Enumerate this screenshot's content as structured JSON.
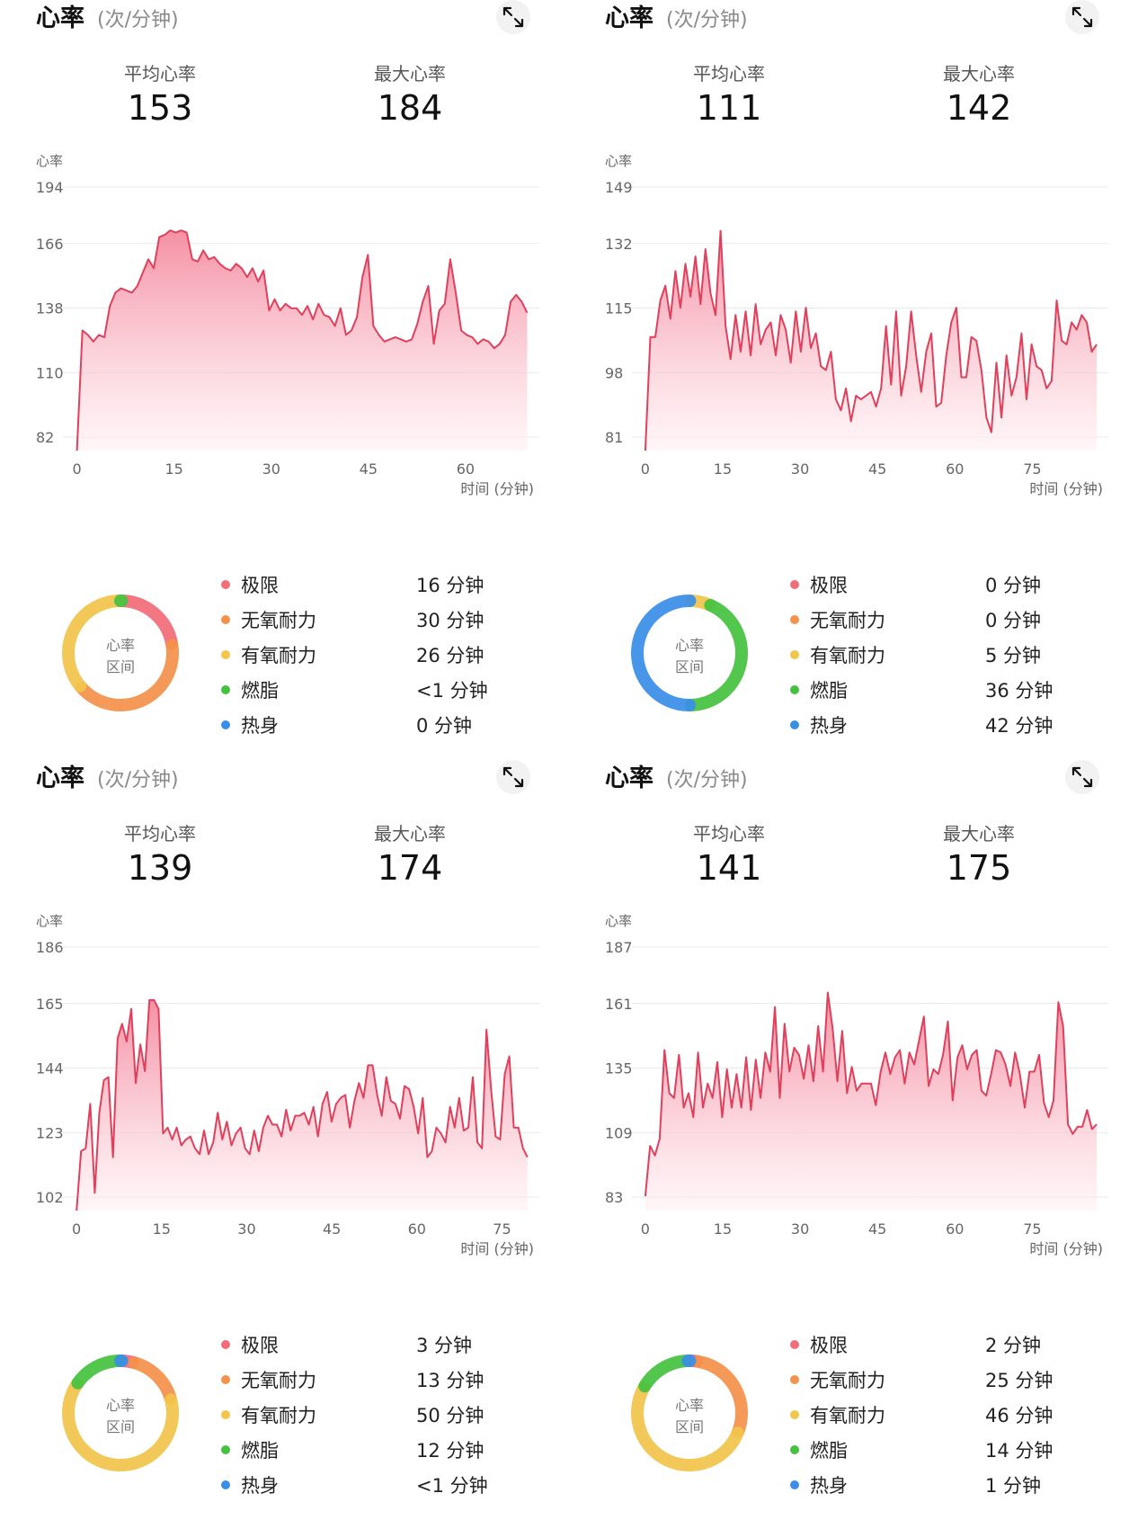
{
  "common": {
    "title": "心率",
    "unit": "(次/分钟)",
    "avg_label": "平均心率",
    "max_label": "最大心率",
    "y_axis_label": "心率",
    "x_axis_label": "时间 (分钟)",
    "donut_center_line1": "心率",
    "donut_center_line2": "区间",
    "expand_icon": "expand-arrows-icon",
    "line_color": "#e0405c",
    "fill_top": "#f48a9f",
    "fill_bottom": "#fff0f3"
  },
  "zones": [
    {
      "name": "极限",
      "color": "#f26d78"
    },
    {
      "name": "无氧耐力",
      "color": "#f4914a"
    },
    {
      "name": "有氧耐力",
      "color": "#f2c64b"
    },
    {
      "name": "燃脂",
      "color": "#44c23f"
    },
    {
      "name": "热身",
      "color": "#3a8ee8"
    }
  ],
  "panels": [
    {
      "avg": "153",
      "max": "184",
      "zone_values": [
        "16 分钟",
        "30 分钟",
        "26 分钟",
        "<1 分钟",
        "0 分钟"
      ],
      "donut_minutes": [
        16,
        30,
        26,
        0.5,
        0
      ],
      "chart_data": {
        "type": "area",
        "ylim": [
          82,
          194
        ],
        "yticks": [
          "194",
          "166",
          "138",
          "110",
          "82"
        ],
        "xlim": [
          -0.5,
          70
        ],
        "xticks": [
          "0",
          "15",
          "30",
          "45",
          "60"
        ],
        "xtick_values": [
          0,
          15,
          30,
          45,
          60
        ],
        "values": [
          82,
          136,
          134,
          131,
          134,
          133,
          147,
          153,
          155,
          154,
          153,
          156,
          162,
          168,
          164,
          178,
          179,
          181,
          180,
          181,
          180,
          168,
          167,
          172,
          168,
          169,
          166,
          164,
          163,
          166,
          164,
          160,
          164,
          158,
          163,
          145,
          150,
          145,
          148,
          146,
          146,
          143,
          147,
          141,
          148,
          143,
          142,
          138,
          146,
          134,
          136,
          142,
          160,
          170,
          138,
          134,
          131,
          132,
          133,
          132,
          131,
          132,
          139,
          149,
          156,
          130,
          145,
          148,
          168,
          153,
          136,
          134,
          133,
          130,
          132,
          131,
          128,
          130,
          134,
          149,
          152,
          149,
          144
        ]
      }
    },
    {
      "avg": "111",
      "max": "142",
      "zone_values": [
        "0 分钟",
        "0 分钟",
        "5 分钟",
        "36 分钟",
        "42 分钟"
      ],
      "donut_minutes": [
        0,
        0,
        5,
        36,
        42
      ],
      "chart_data": {
        "type": "area",
        "ylim": [
          81,
          149
        ],
        "yticks": [
          "149",
          "132",
          "115",
          "98",
          "81"
        ],
        "xlim": [
          -0.5,
          88
        ],
        "xticks": [
          "0",
          "15",
          "30",
          "45",
          "60",
          "75"
        ],
        "xtick_values": [
          0,
          15,
          30,
          45,
          60,
          75
        ],
        "values": [
          81,
          112,
          112,
          122,
          126,
          117,
          130,
          120,
          132,
          123,
          134,
          121,
          136,
          124,
          118,
          141,
          115,
          106,
          118,
          108,
          119,
          107,
          121,
          110,
          114,
          116,
          107,
          118,
          114,
          105,
          119,
          108,
          120,
          109,
          113,
          104,
          103,
          108,
          95,
          92,
          98,
          89,
          96,
          95,
          96,
          97,
          93,
          98,
          115,
          99,
          119,
          96,
          104,
          119,
          107,
          97,
          108,
          113,
          93,
          94,
          107,
          116,
          120,
          101,
          101,
          112,
          111,
          103,
          90,
          86,
          105,
          90,
          107,
          96,
          101,
          113,
          95,
          110,
          104,
          103,
          98,
          100,
          122,
          111,
          110,
          116,
          114,
          118,
          116,
          108,
          110
        ]
      }
    },
    {
      "avg": "139",
      "max": "174",
      "zone_values": [
        "3 分钟",
        "13 分钟",
        "50 分钟",
        "12 分钟",
        "<1 分钟"
      ],
      "donut_minutes": [
        3,
        13,
        50,
        12,
        0.5
      ],
      "chart_data": {
        "type": "area",
        "ylim": [
          102,
          186
        ],
        "yticks": [
          "186",
          "165",
          "144",
          "123",
          "102"
        ],
        "xlim": [
          -0.5,
          80
        ],
        "xticks": [
          "0",
          "15",
          "30",
          "45",
          "60",
          "75"
        ],
        "xtick_values": [
          0,
          15,
          30,
          45,
          60,
          75
        ],
        "values": [
          102,
          122,
          123,
          138,
          108,
          135,
          146,
          147,
          120,
          160,
          165,
          159,
          170,
          145,
          158,
          149,
          173,
          173,
          170,
          128,
          130,
          126,
          130,
          124,
          126,
          127,
          123,
          121,
          129,
          121,
          125,
          135,
          126,
          132,
          124,
          128,
          130,
          123,
          121,
          129,
          122,
          130,
          134,
          131,
          131,
          127,
          136,
          129,
          134,
          134,
          135,
          131,
          137,
          127,
          138,
          142,
          132,
          138,
          140,
          141,
          130,
          139,
          145,
          140,
          151,
          151,
          141,
          134,
          147,
          139,
          138,
          133,
          144,
          143,
          137,
          128,
          140,
          120,
          122,
          130,
          128,
          125,
          137,
          130,
          140,
          129,
          130,
          147,
          125,
          123,
          163,
          143,
          127,
          126,
          148,
          154,
          130,
          130,
          123,
          120
        ]
      }
    },
    {
      "avg": "141",
      "max": "175",
      "zone_values": [
        "2 分钟",
        "25 分钟",
        "46 分钟",
        "14 分钟",
        "1 分钟"
      ],
      "donut_minutes": [
        2,
        25,
        46,
        14,
        1
      ],
      "chart_data": {
        "type": "area",
        "ylim": [
          83,
          187
        ],
        "yticks": [
          "187",
          "161",
          "135",
          "109",
          "83"
        ],
        "xlim": [
          -0.5,
          88
        ],
        "xticks": [
          "0",
          "15",
          "30",
          "45",
          "60",
          "75"
        ],
        "xtick_values": [
          0,
          15,
          30,
          45,
          60,
          75
        ],
        "values": [
          89,
          110,
          106,
          113,
          150,
          132,
          130,
          148,
          126,
          132,
          122,
          149,
          126,
          136,
          130,
          145,
          122,
          142,
          126,
          140,
          126,
          147,
          125,
          146,
          130,
          149,
          141,
          168,
          130,
          161,
          141,
          151,
          148,
          138,
          152,
          137,
          160,
          141,
          174,
          159,
          137,
          158,
          132,
          143,
          133,
          136,
          136,
          136,
          127,
          141,
          149,
          140,
          147,
          150,
          136,
          149,
          144,
          154,
          164,
          135,
          142,
          140,
          148,
          162,
          129,
          147,
          152,
          142,
          148,
          150,
          133,
          131,
          140,
          150,
          149,
          144,
          135,
          149,
          140,
          126,
          141,
          141,
          148,
          128,
          122,
          129,
          170,
          160,
          119,
          115,
          118,
          118,
          125,
          117,
          119
        ]
      }
    }
  ]
}
